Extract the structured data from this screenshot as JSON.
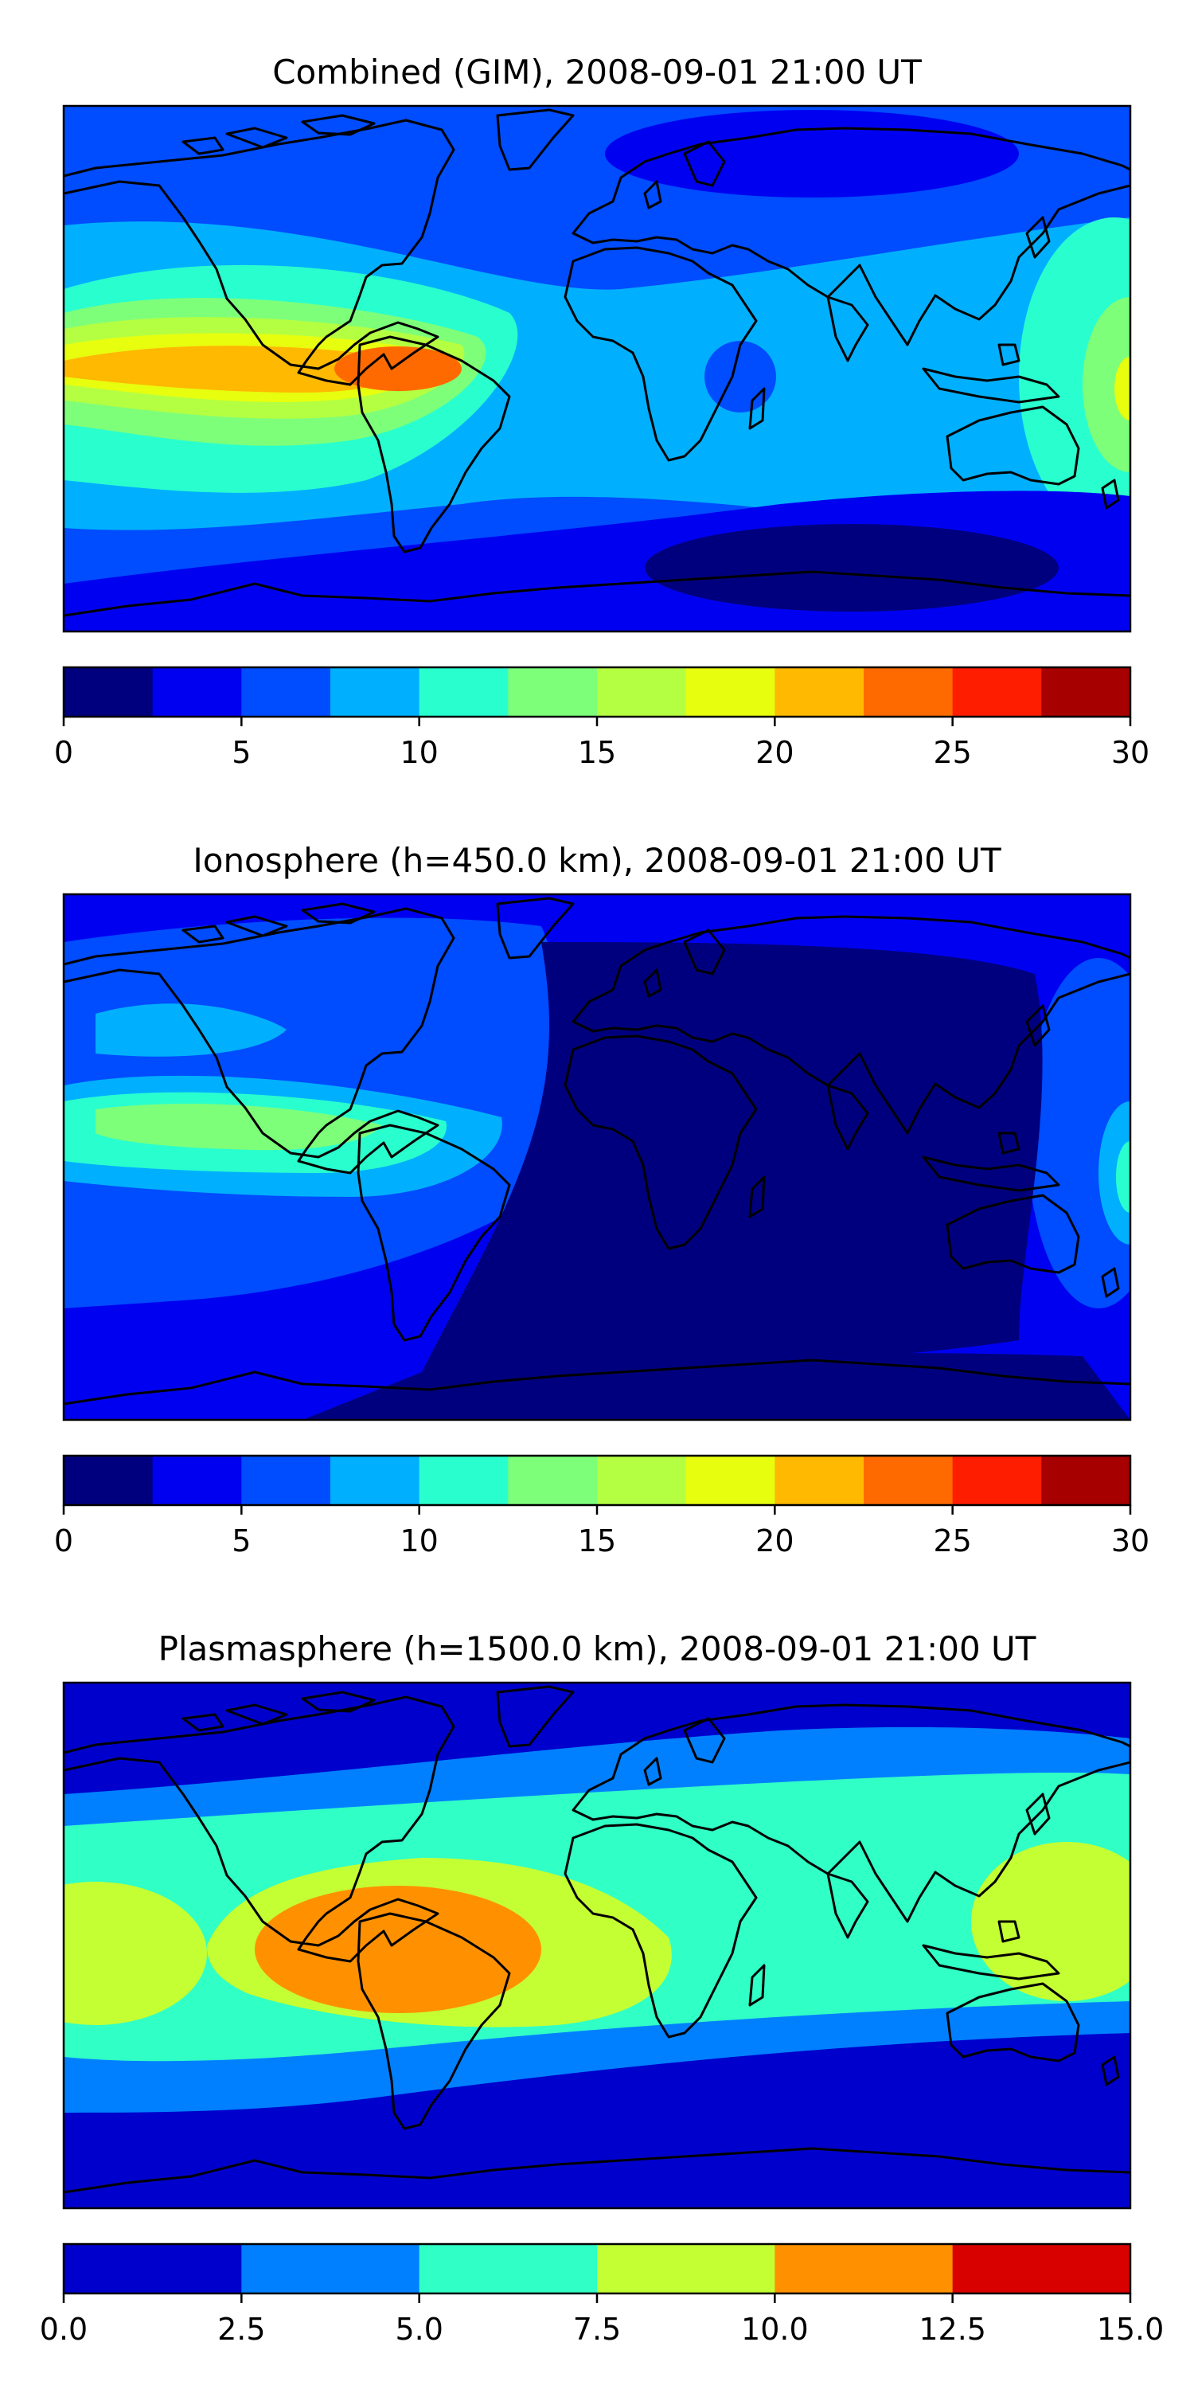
{
  "panels": [
    {
      "title": "Combined (GIM), 2008-09-01 21:00 UT",
      "colorbar": {
        "ticks": [
          "0",
          "5",
          "10",
          "15",
          "20",
          "25",
          "30"
        ],
        "colors": [
          "#00007f",
          "#0000f1",
          "#004cff",
          "#00b0ff",
          "#29ffce",
          "#7dff7a",
          "#b4ff42",
          "#e7ff0f",
          "#ffb900",
          "#ff6a00",
          "#ff1d00",
          "#a60000"
        ]
      }
    },
    {
      "title": "Ionosphere  (h=450.0 km), 2008-09-01 21:00 UT",
      "colorbar": {
        "ticks": [
          "0",
          "5",
          "10",
          "15",
          "20",
          "25",
          "30"
        ],
        "colors": [
          "#00007f",
          "#0000f1",
          "#004cff",
          "#00b0ff",
          "#29ffce",
          "#7dff7a",
          "#b4ff42",
          "#e7ff0f",
          "#ffb900",
          "#ff6a00",
          "#ff1d00",
          "#a60000"
        ]
      }
    },
    {
      "title": "Plasmasphere (h=1500.0 km), 2008-09-01 21:00 UT",
      "colorbar": {
        "ticks": [
          "0.0",
          "2.5",
          "5.0",
          "7.5",
          "10.0",
          "12.5",
          "15.0"
        ],
        "colors": [
          "#0000cd",
          "#0080ff",
          "#30ffc6",
          "#c4ff33",
          "#ff9100",
          "#d90000"
        ]
      }
    }
  ]
}
